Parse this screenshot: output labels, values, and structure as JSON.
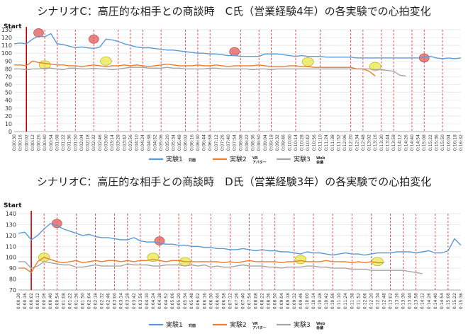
{
  "chart_data": [
    {
      "type": "line",
      "title": "シナリオC：高圧的な相手との商談時　C氏（営業経験4年）の各実験での心拍変化",
      "start_label": "Start",
      "ylim": [
        0,
        130
      ],
      "yticks": [
        0,
        10,
        20,
        30,
        40,
        50,
        60,
        70,
        80,
        90,
        100,
        110,
        120,
        130
      ],
      "x_tick_labels": [
        "0:00:30",
        "0:00:16",
        "0:00:02",
        "0:00:12",
        "0:00:26",
        "0:00:40",
        "0:00:54",
        "0:01:08",
        "0:01:22",
        "0:01:36",
        "0:01:50",
        "0:02:04",
        "0:02:18",
        "0:02:32",
        "0:02:46",
        "0:03:00",
        "0:03:14",
        "0:03:28",
        "0:03:42",
        "0:03:56",
        "0:04:10",
        "0:04:24",
        "0:04:38",
        "0:04:52",
        "0:05:06",
        "0:05:20",
        "0:05:34",
        "0:05:48",
        "0:06:02",
        "0:06:16",
        "0:06:30",
        "0:06:44",
        "0:06:58",
        "0:07:12",
        "0:07:26",
        "0:07:40",
        "0:07:54",
        "0:08:08",
        "0:08:22",
        "0:08:36",
        "0:08:50",
        "0:09:04",
        "0:09:18",
        "0:09:32",
        "0:09:46",
        "0:10:00",
        "0:10:14",
        "0:10:28",
        "0:10:42",
        "0:10:56",
        "0:11:10",
        "0:11:24",
        "0:11:38",
        "0:11:52",
        "0:12:06",
        "0:12:20",
        "0:12:34",
        "0:12:48",
        "0:13:02",
        "0:13:16",
        "0:13:30",
        "0:13:44",
        "0:13:58",
        "0:14:12",
        "0:14:26",
        "0:14:40",
        "0:14:54",
        "0:15:08",
        "0:15:22",
        "0:15:36",
        "0:15:50",
        "0:16:04",
        "0:16:18",
        "0:16:32"
      ],
      "start_index": 2,
      "marker_indices": [
        5,
        7,
        10,
        13,
        17,
        19,
        21,
        24,
        28,
        30,
        32,
        37,
        40,
        42,
        46,
        50,
        55,
        57,
        60,
        62,
        65,
        67,
        70
      ],
      "series": [
        {
          "name": "実験1",
          "sub": "対面",
          "color": "#5b9bd5",
          "values": [
            112,
            113,
            112,
            118,
            122,
            121,
            125,
            112,
            111,
            109,
            107,
            108,
            107,
            106,
            108,
            118,
            117,
            115,
            112,
            110,
            108,
            107,
            107,
            106,
            105,
            104,
            104,
            103,
            102,
            101,
            100,
            100,
            99,
            99,
            98,
            97,
            97,
            96,
            96,
            96,
            96,
            99,
            99,
            99,
            98,
            97,
            96,
            97,
            96,
            96,
            96,
            95,
            95,
            95,
            95,
            95,
            94,
            94,
            94,
            94,
            94,
            94,
            94,
            94,
            94,
            94,
            94,
            95,
            96,
            94,
            93,
            94,
            93,
            94
          ]
        },
        {
          "name": "実験2",
          "sub": "VR\nアバター",
          "color": "#ed7d31",
          "values": [
            85,
            85,
            84,
            90,
            88,
            87,
            86,
            85,
            85,
            84,
            84,
            83,
            84,
            85,
            84,
            83,
            84,
            84,
            85,
            84,
            85,
            84,
            83,
            84,
            85,
            86,
            85,
            84,
            84,
            84,
            85,
            84,
            84,
            85,
            84,
            83,
            84,
            84,
            84,
            84,
            85,
            84,
            83,
            83,
            83,
            84,
            84,
            83,
            83,
            82,
            82,
            82,
            82,
            82,
            82,
            82,
            80,
            80,
            77,
            71
          ]
        },
        {
          "name": "実験3",
          "sub": "Web\n会議",
          "color": "#a5a5a5",
          "values": [
            80,
            80,
            79,
            80,
            80,
            81,
            81,
            80,
            79,
            81,
            81,
            80,
            80,
            81,
            80,
            80,
            79,
            80,
            81,
            82,
            82,
            82,
            81,
            81,
            81,
            82,
            81,
            81,
            80,
            80,
            80,
            80,
            81,
            81,
            80,
            80,
            80,
            80,
            80,
            79,
            80,
            80,
            79,
            80,
            80,
            80,
            80,
            80,
            80,
            80,
            80,
            80,
            80,
            80,
            80,
            80,
            80,
            80,
            80,
            79,
            79,
            78,
            77,
            72,
            71
          ]
        }
      ],
      "highlights": [
        {
          "index": 4,
          "value": 126,
          "color": "#e05a5a"
        },
        {
          "index": 13,
          "value": 118,
          "color": "#e05a5a"
        },
        {
          "index": 36,
          "value": 102,
          "color": "#e05a5a"
        },
        {
          "index": 67,
          "value": 94,
          "color": "#e05a5a"
        },
        {
          "index": 5,
          "value": 85,
          "color": "#e8e84a"
        },
        {
          "index": 15,
          "value": 90,
          "color": "#e8e84a"
        },
        {
          "index": 48,
          "value": 89,
          "color": "#e8e84a"
        },
        {
          "index": 59,
          "value": 83,
          "color": "#e8e84a"
        }
      ],
      "legend": [
        {
          "label": "実験1",
          "sub": "対面"
        },
        {
          "label": "実験2",
          "sub": "VR\nアバター"
        },
        {
          "label": "実験3",
          "sub": "Web\n会議"
        }
      ]
    },
    {
      "type": "line",
      "title": "シナリオC：高圧的な相手との商談時　D氏（営業経験3年）の各実験での心拍変化",
      "start_label": "Start",
      "ylim": [
        70,
        140
      ],
      "yticks": [
        70,
        80,
        90,
        100,
        110,
        120,
        130,
        140
      ],
      "x_tick_labels": [
        "0:00:30",
        "0:00:16",
        "0:00:02",
        "0:00:12",
        "0:00:26",
        "0:00:40",
        "0:00:54",
        "0:01:08",
        "0:01:22",
        "0:01:36",
        "0:01:50",
        "0:02:04",
        "0:02:18",
        "0:02:32",
        "0:02:46",
        "0:03:00",
        "0:03:14",
        "0:03:28",
        "0:03:42",
        "0:03:56",
        "0:04:10",
        "0:04:24",
        "0:04:38",
        "0:04:52",
        "0:05:06",
        "0:05:20",
        "0:05:34",
        "0:05:48",
        "0:06:02",
        "0:06:16",
        "0:06:30",
        "0:06:44",
        "0:06:58",
        "0:07:12",
        "0:07:26",
        "0:07:40",
        "0:07:54",
        "0:08:08",
        "0:08:22",
        "0:08:36",
        "0:08:50",
        "0:09:04",
        "0:09:18",
        "0:09:32",
        "0:09:46",
        "0:10:00",
        "0:10:14",
        "0:10:28",
        "0:10:42",
        "0:10:56",
        "0:11:10",
        "0:11:24",
        "0:11:38",
        "0:11:52",
        "0:12:06",
        "0:12:20",
        "0:12:34",
        "0:12:48",
        "0:13:02",
        "0:13:16",
        "0:13:30",
        "0:13:44",
        "0:13:58",
        "0:14:12",
        "0:14:26",
        "0:14:40",
        "0:14:54",
        "0:15:08",
        "0:15:22",
        "0:15:36"
      ],
      "start_index": 2,
      "marker_indices": [
        4,
        6,
        9,
        12,
        15,
        17,
        19,
        22,
        25,
        27,
        30,
        33,
        36,
        38,
        40,
        43,
        46,
        49,
        52,
        55,
        58,
        60,
        62,
        65,
        67
      ],
      "series": [
        {
          "name": "実験1",
          "sub": "対面",
          "color": "#5b9bd5",
          "values": [
            122,
            123,
            116,
            120,
            126,
            131,
            129,
            126,
            124,
            122,
            120,
            121,
            119,
            118,
            118,
            117,
            116,
            116,
            118,
            115,
            114,
            114,
            113,
            112,
            112,
            111,
            111,
            110,
            110,
            109,
            109,
            108,
            108,
            107,
            107,
            108,
            107,
            106,
            107,
            106,
            106,
            105,
            105,
            104,
            103,
            105,
            104,
            104,
            103,
            102,
            103,
            104,
            103,
            103,
            102,
            103,
            104,
            104,
            104,
            105,
            105,
            105,
            104,
            105,
            106,
            104,
            104,
            106,
            117,
            111
          ]
        },
        {
          "name": "実験2",
          "sub": "VR\nアバター",
          "color": "#ed7d31",
          "values": [
            90,
            90,
            86,
            96,
            100,
            98,
            96,
            95,
            96,
            97,
            95,
            96,
            97,
            96,
            97,
            97,
            96,
            97,
            96,
            97,
            97,
            98,
            97,
            96,
            97,
            97,
            96,
            96,
            96,
            96,
            96,
            96,
            95,
            96,
            95,
            96,
            97,
            96,
            96,
            96,
            96,
            95,
            96,
            96,
            97,
            96,
            96,
            96,
            97,
            96,
            96,
            96,
            95,
            96,
            95,
            96,
            95,
            95
          ]
        },
        {
          "name": "実験3",
          "sub": "Web\n会議",
          "color": "#a5a5a5",
          "values": [
            96,
            96,
            90,
            92,
            96,
            95,
            94,
            93,
            93,
            91,
            91,
            92,
            93,
            92,
            92,
            92,
            92,
            94,
            93,
            93,
            93,
            92,
            92,
            93,
            93,
            93,
            92,
            93,
            92,
            93,
            91,
            92,
            91,
            91,
            92,
            93,
            92,
            92,
            92,
            91,
            91,
            90,
            91,
            91,
            91,
            92,
            92,
            91,
            91,
            90,
            90,
            90,
            89,
            89,
            89,
            88,
            88,
            88,
            88,
            88,
            88,
            87,
            86,
            85
          ]
        }
      ],
      "highlights": [
        {
          "index": 6,
          "value": 131,
          "color": "#e05a5a"
        },
        {
          "index": 22,
          "value": 115,
          "color": "#e05a5a"
        },
        {
          "index": 4,
          "value": 100,
          "color": "#e8e84a"
        },
        {
          "index": 21,
          "value": 100,
          "color": "#e8e84a"
        },
        {
          "index": 26,
          "value": 96,
          "color": "#e8e84a"
        },
        {
          "index": 44,
          "value": 98,
          "color": "#e8e84a"
        },
        {
          "index": 56,
          "value": 96,
          "color": "#e8e84a"
        }
      ],
      "legend": [
        {
          "label": "実験1",
          "sub": "対面"
        },
        {
          "label": "実験2",
          "sub": "VR\nアバター"
        },
        {
          "label": "実験3",
          "sub": "Web\n会議"
        }
      ]
    }
  ]
}
